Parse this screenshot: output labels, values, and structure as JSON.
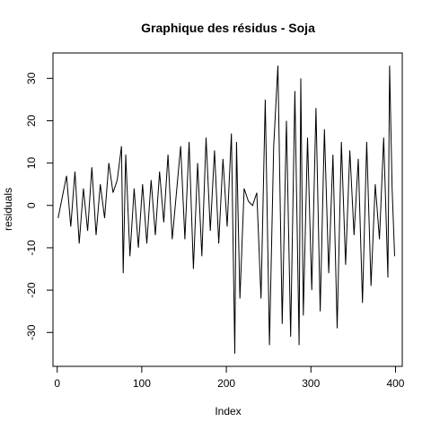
{
  "chart_data": {
    "type": "line",
    "title": "Graphique des résidus - Soja",
    "xlabel": "Index",
    "ylabel": "residuals",
    "xlim": [
      -5,
      408
    ],
    "ylim": [
      -38,
      36
    ],
    "xticks": [
      0,
      100,
      200,
      300,
      400
    ],
    "yticks": [
      -30,
      -20,
      -10,
      0,
      10,
      20,
      30
    ],
    "grid": false,
    "series": [
      {
        "color": "#000000",
        "x": [
          1,
          6,
          11,
          16,
          21,
          26,
          31,
          36,
          41,
          46,
          51,
          56,
          61,
          66,
          71,
          76,
          78,
          81,
          86,
          91,
          96,
          101,
          106,
          111,
          116,
          121,
          126,
          131,
          136,
          141,
          146,
          151,
          156,
          161,
          166,
          171,
          176,
          181,
          186,
          191,
          196,
          201,
          206,
          210,
          212,
          216,
          221,
          226,
          231,
          236,
          241,
          246,
          251,
          256,
          261,
          266,
          271,
          276,
          281,
          286,
          288,
          291,
          296,
          301,
          306,
          311,
          316,
          321,
          326,
          331,
          336,
          341,
          346,
          351,
          356,
          361,
          366,
          371,
          376,
          381,
          386,
          391,
          393,
          396,
          399
        ],
        "y": [
          -3,
          2,
          7,
          -5,
          8,
          -9,
          4,
          -6,
          9,
          -7,
          5,
          -3,
          10,
          3,
          6,
          14,
          -16,
          12,
          -12,
          4,
          -10,
          5,
          -9,
          6,
          -7,
          8,
          -4,
          12,
          -8,
          3,
          14,
          -8,
          15,
          -15,
          10,
          -12,
          16,
          -6,
          13,
          -9,
          11,
          -5,
          17,
          -35,
          15,
          -22,
          4,
          1,
          0,
          3,
          -22,
          25,
          -33,
          14,
          33,
          -28,
          20,
          -31,
          27,
          -33,
          30,
          -26,
          16,
          -20,
          23,
          -25,
          18,
          -16,
          12,
          -29,
          15,
          -14,
          13,
          -7,
          11,
          -23,
          15,
          -19,
          5,
          -8,
          16,
          -17,
          33,
          4,
          -12
        ]
      }
    ]
  }
}
